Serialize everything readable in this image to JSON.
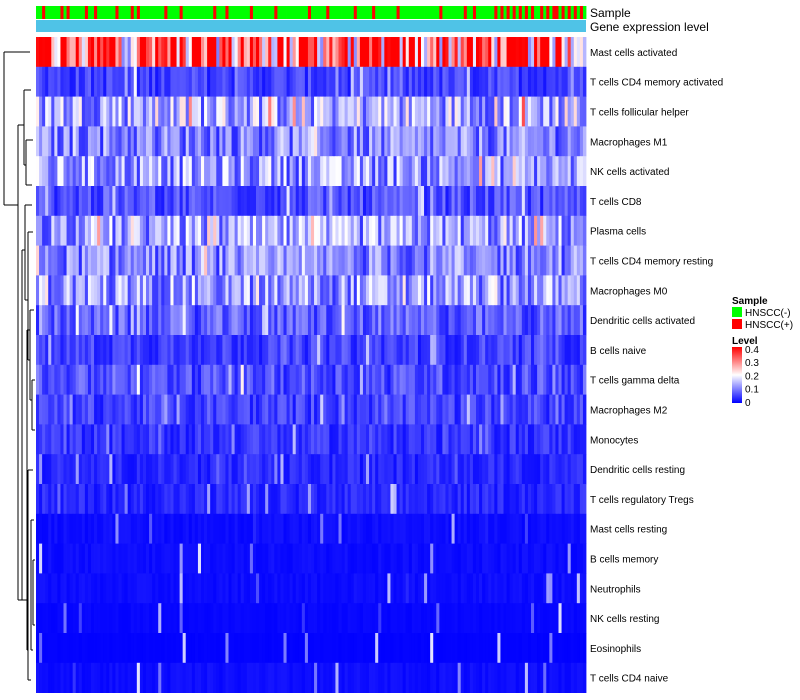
{
  "chart_data": {
    "type": "heatmap",
    "title": "",
    "annotation_rows": [
      "Sample",
      "Gene expression level"
    ],
    "rows": [
      "Mast cells activated",
      "T cells CD4 memory activated",
      "T cells follicular helper",
      "Macrophages M1",
      "NK cells activated",
      "T cells CD8",
      "Plasma cells",
      "T cells CD4 memory resting",
      "Macrophages M0",
      "Dendritic cells activated",
      "B cells naive",
      "T cells gamma delta",
      "Macrophages M2",
      "Monocytes",
      "Dendritic cells resting",
      "T cells regulatory  Tregs",
      "Mast cells resting",
      "B cells memory",
      "Neutrophils",
      "NK cells resting",
      "Eosinophils",
      "T cells CD4 naive"
    ],
    "row_mean_levels": [
      0.32,
      0.05,
      0.14,
      0.1,
      0.12,
      0.06,
      0.12,
      0.1,
      0.12,
      0.07,
      0.05,
      0.06,
      0.05,
      0.04,
      0.03,
      0.03,
      0.01,
      0.01,
      0.01,
      0.005,
      0.002,
      0.01
    ],
    "n_samples": 180,
    "sample_pattern": "GGRGGGGGRGRGGGGGRGGRGGGGGGRGGGGRGRGGGGGGGGRGGGGRGGGGGGGGGGRGGGRGGGGGGGRGGGGGGGRGGGGGGGGGGRGGGGGRGGGGGGGGRGGGGGRGGGGGGGRGGGGGGGGGGGGGRGGGGGGGRGGRGGGGGGRGRGRGRGRGRGRGGRGRGRRGRGRGRGR",
    "legend": {
      "sample_title": "Sample",
      "sample_items": [
        {
          "label": "HNSCC(-)",
          "color": "#00ff00"
        },
        {
          "label": "HNSCC(+)",
          "color": "#ff0000"
        }
      ],
      "level_title": "Level",
      "level_ticks": [
        "0.4",
        "0.3",
        "0.2",
        "0.1",
        "0"
      ],
      "level_range": [
        0,
        0.4
      ],
      "level_colors": [
        "#0000ff",
        "#ffffff",
        "#ff0000"
      ]
    },
    "annotation_color_level": "#4fc3e7",
    "dendrogram_side": "left"
  }
}
